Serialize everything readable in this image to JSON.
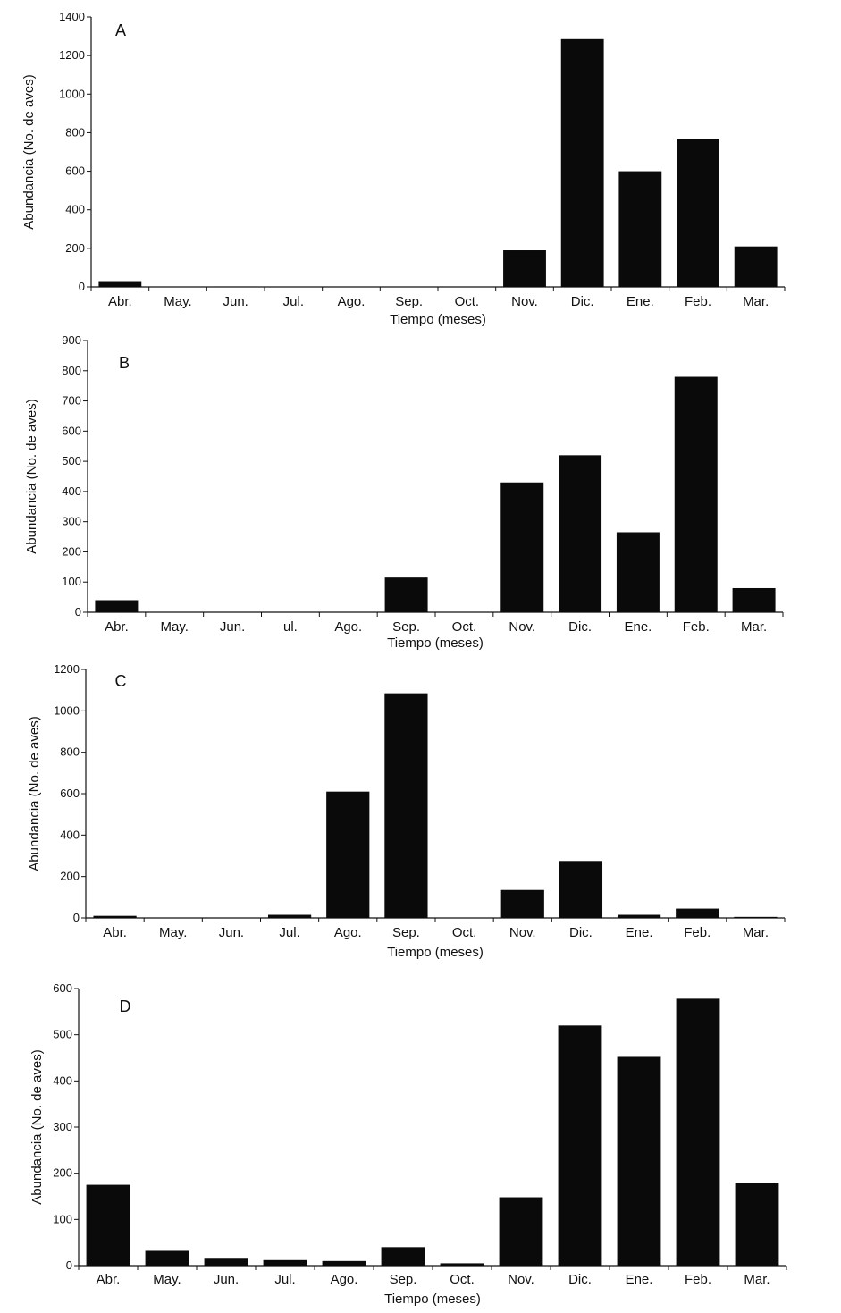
{
  "chart_data": [
    {
      "type": "bar",
      "panel_label": "A",
      "categories": [
        "Abr.",
        "May.",
        "Jun.",
        "Jul.",
        "Ago.",
        "Sep.",
        "Oct.",
        "Nov.",
        "Dic.",
        "Ene.",
        "Feb.",
        "Mar."
      ],
      "values": [
        30,
        0,
        2,
        0,
        0,
        0,
        0,
        190,
        1285,
        600,
        765,
        210
      ],
      "xlabel": "Tiempo (meses)",
      "ylabel": "Abundancia (No. de aves)",
      "ylim": [
        0,
        1400
      ],
      "yticks": [
        0,
        200,
        400,
        600,
        800,
        1000,
        1200,
        1400
      ],
      "bar_color": "#0a0a0a"
    },
    {
      "type": "bar",
      "panel_label": "B",
      "categories": [
        "Abr.",
        "May.",
        "Jun.",
        "ul.",
        "Ago.",
        "Sep.",
        "Oct.",
        "Nov.",
        "Dic.",
        "Ene.",
        "Feb.",
        "Mar."
      ],
      "values": [
        40,
        0,
        0,
        0,
        0,
        115,
        0,
        430,
        520,
        265,
        780,
        80
      ],
      "xlabel": "Tiempo (meses)",
      "ylabel": "Abundancia (No. de aves)",
      "ylim": [
        0,
        900
      ],
      "yticks": [
        0,
        100,
        200,
        300,
        400,
        500,
        600,
        700,
        800,
        900
      ],
      "bar_color": "#0a0a0a"
    },
    {
      "type": "bar",
      "panel_label": "C",
      "categories": [
        "Abr.",
        "May.",
        "Jun.",
        "Jul.",
        "Ago.",
        "Sep.",
        "Oct.",
        "Nov.",
        "Dic.",
        "Ene.",
        "Feb.",
        "Mar."
      ],
      "values": [
        10,
        0,
        0,
        15,
        610,
        1085,
        0,
        135,
        275,
        15,
        45,
        5
      ],
      "xlabel": "Tiempo (meses)",
      "ylabel": "Abundancia (No. de aves)",
      "ylim": [
        0,
        1200
      ],
      "yticks": [
        0,
        200,
        400,
        600,
        800,
        1000,
        1200
      ],
      "bar_color": "#0a0a0a"
    },
    {
      "type": "bar",
      "panel_label": "D",
      "categories": [
        "Abr.",
        "May.",
        "Jun.",
        "Jul.",
        "Ago.",
        "Sep.",
        "Oct.",
        "Nov.",
        "Dic.",
        "Ene.",
        "Feb.",
        "Mar."
      ],
      "values": [
        175,
        32,
        15,
        12,
        10,
        40,
        5,
        148,
        520,
        452,
        578,
        180
      ],
      "xlabel": "Tiempo (meses)",
      "ylabel": "Abundancia (No. de aves)",
      "ylim": [
        0,
        600
      ],
      "yticks": [
        0,
        100,
        200,
        300,
        400,
        500,
        600
      ],
      "bar_color": "#0a0a0a"
    }
  ]
}
